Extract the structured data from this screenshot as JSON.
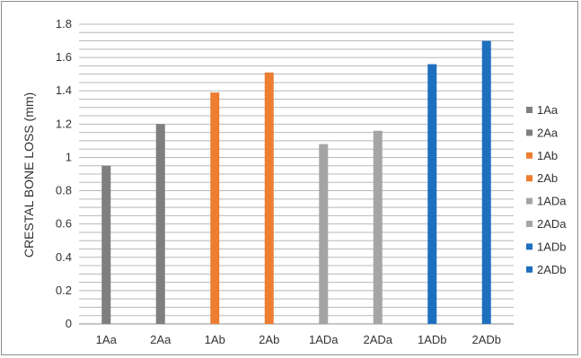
{
  "chart_data": {
    "type": "bar",
    "title": "",
    "xlabel": "",
    "ylabel": "CRESTAL BONE LOSS (mm)",
    "ylim": [
      0,
      1.8
    ],
    "major_ticks": [
      0,
      0.2,
      0.4,
      0.6,
      0.8,
      1,
      1.2,
      1.4,
      1.6,
      1.8
    ],
    "minor_grid_step": 0.05,
    "grid": true,
    "legend_position": "right",
    "categories": [
      "1Aa",
      "2Aa",
      "1Ab",
      "2Ab",
      "1ADa",
      "2ADa",
      "1ADb",
      "2ADb"
    ],
    "values": [
      0.95,
      1.2,
      1.39,
      1.51,
      1.08,
      1.16,
      1.56,
      1.7
    ],
    "colors": [
      "#7f7f7f",
      "#7f7f7f",
      "#ed7d31",
      "#ed7d31",
      "#a5a5a5",
      "#a5a5a5",
      "#1f6fbf",
      "#1f6fbf"
    ],
    "legend": [
      {
        "label": "1Aa",
        "color": "#7f7f7f"
      },
      {
        "label": "2Aa",
        "color": "#7f7f7f"
      },
      {
        "label": "1Ab",
        "color": "#ed7d31"
      },
      {
        "label": "2Ab",
        "color": "#ed7d31"
      },
      {
        "label": "1ADa",
        "color": "#a5a5a5"
      },
      {
        "label": "2ADa",
        "color": "#a5a5a5"
      },
      {
        "label": "1ADb",
        "color": "#1f6fbf"
      },
      {
        "label": "2ADb",
        "color": "#1f6fbf"
      }
    ]
  }
}
